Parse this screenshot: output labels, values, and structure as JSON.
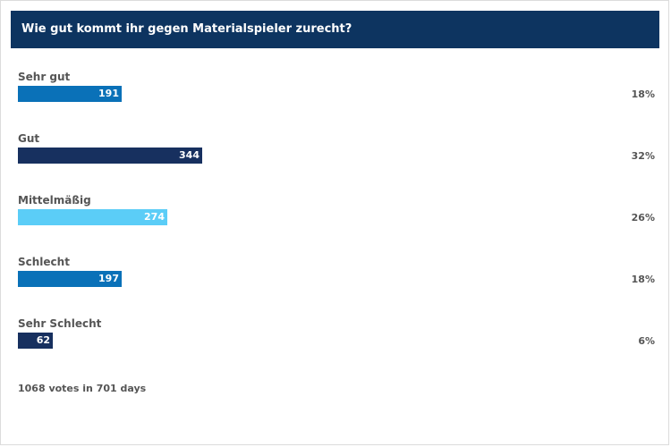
{
  "poll": {
    "question": "Wie gut kommt ihr gegen Materialspieler zurecht?",
    "answers": [
      {
        "label": "Sehr gut",
        "votes": "191",
        "percent": "18%",
        "share": 0.18,
        "color": "#0a71b8"
      },
      {
        "label": "Gut",
        "votes": "344",
        "percent": "32%",
        "share": 0.32,
        "color": "#17305f"
      },
      {
        "label": "Mittelmäßig",
        "votes": "274",
        "percent": "26%",
        "share": 0.26,
        "color": "#5bcdf7"
      },
      {
        "label": "Schlecht",
        "votes": "197",
        "percent": "18%",
        "share": 0.18,
        "color": "#0a71b8"
      },
      {
        "label": "Sehr Schlecht",
        "votes": "62",
        "percent": "6%",
        "share": 0.06,
        "color": "#17305f"
      }
    ],
    "footer": "1068 votes in 701 days"
  }
}
